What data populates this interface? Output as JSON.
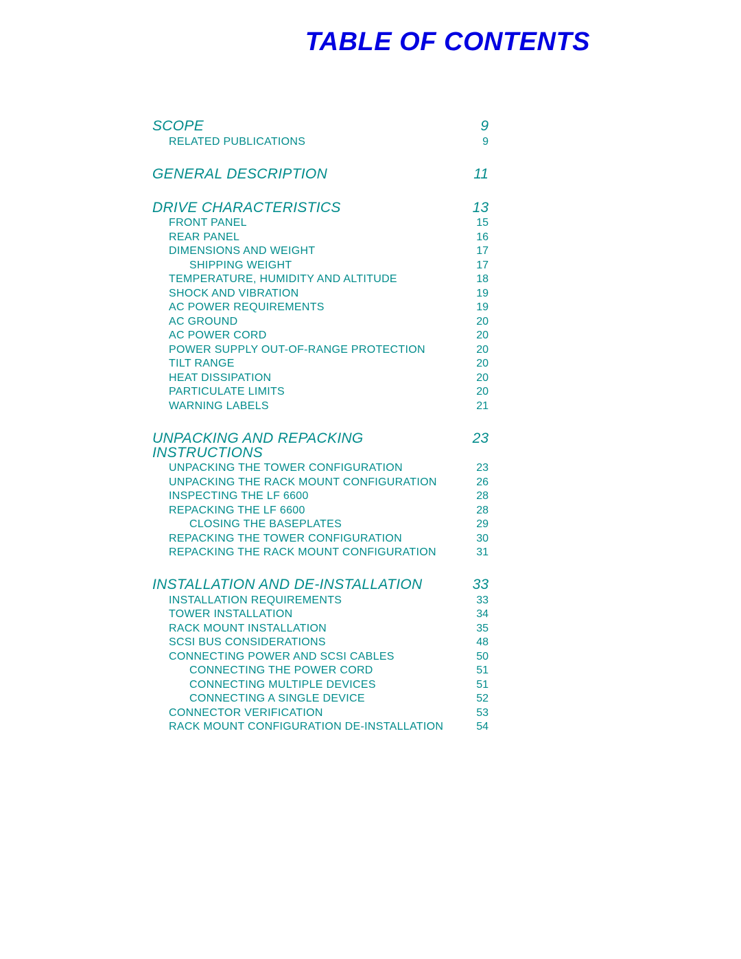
{
  "title": "TABLE OF CONTENTS",
  "colors": {
    "title": "#0000e0",
    "text": "#008b8b",
    "background": "#ffffff"
  },
  "typography": {
    "title_fontsize": 38,
    "section_fontsize": 21,
    "item_fontsize": 16,
    "title_style": "italic bold",
    "section_style": "italic",
    "font_family": "Arial"
  },
  "sections": [
    {
      "label": "SCOPE",
      "page": "9",
      "items": [
        {
          "label": "RELATED PUBLICATIONS",
          "page": "9",
          "indent": 1
        }
      ]
    },
    {
      "label": "GENERAL DESCRIPTION",
      "page": "11",
      "items": []
    },
    {
      "label": "DRIVE CHARACTERISTICS",
      "page": "13",
      "items": [
        {
          "label": "FRONT PANEL",
          "page": "15",
          "indent": 1
        },
        {
          "label": "REAR PANEL",
          "page": "16",
          "indent": 1
        },
        {
          "label": "DIMENSIONS AND WEIGHT",
          "page": "17",
          "indent": 1
        },
        {
          "label": "SHIPPING WEIGHT",
          "page": "17",
          "indent": 2
        },
        {
          "label": "TEMPERATURE, HUMIDITY AND ALTITUDE",
          "page": "18",
          "indent": 1
        },
        {
          "label": "SHOCK AND VIBRATION",
          "page": "19",
          "indent": 1
        },
        {
          "label": "AC POWER REQUIREMENTS",
          "page": "19",
          "indent": 1
        },
        {
          "label": "AC GROUND",
          "page": "20",
          "indent": 1
        },
        {
          "label": "AC POWER CORD",
          "page": "20",
          "indent": 1
        },
        {
          "label": "POWER SUPPLY OUT-OF-RANGE PROTECTION",
          "page": "20",
          "indent": 1
        },
        {
          "label": "TILT RANGE",
          "page": "20",
          "indent": 1
        },
        {
          "label": "HEAT DISSIPATION",
          "page": "20",
          "indent": 1
        },
        {
          "label": "PARTICULATE LIMITS",
          "page": "20",
          "indent": 1
        },
        {
          "label": "WARNING LABELS",
          "page": "21",
          "indent": 1
        }
      ]
    },
    {
      "label": "UNPACKING AND REPACKING INSTRUCTIONS",
      "page": "23",
      "items": [
        {
          "label": "UNPACKING THE TOWER CONFIGURATION",
          "page": "23",
          "indent": 1
        },
        {
          "label": "UNPACKING THE RACK MOUNT CONFIGURATION",
          "page": "26",
          "indent": 1
        },
        {
          "label": "INSPECTING THE LF 6600",
          "page": "28",
          "indent": 1
        },
        {
          "label": "REPACKING THE LF 6600",
          "page": "28",
          "indent": 1
        },
        {
          "label": "CLOSING THE BASEPLATES",
          "page": "29",
          "indent": 2
        },
        {
          "label": "REPACKING THE TOWER CONFIGURATION",
          "page": "30",
          "indent": 1
        },
        {
          "label": "REPACKING THE RACK MOUNT CONFIGURATION",
          "page": "31",
          "indent": 1
        }
      ]
    },
    {
      "label": "INSTALLATION AND DE-INSTALLATION",
      "page": "33",
      "items": [
        {
          "label": "INSTALLATION REQUIREMENTS",
          "page": "33",
          "indent": 1
        },
        {
          "label": "TOWER INSTALLATION",
          "page": "34",
          "indent": 1
        },
        {
          "label": "RACK MOUNT INSTALLATION",
          "page": "35",
          "indent": 1
        },
        {
          "label": "SCSI BUS CONSIDERATIONS",
          "page": "48",
          "indent": 1
        },
        {
          "label": "CONNECTING POWER AND SCSI CABLES",
          "page": "50",
          "indent": 1
        },
        {
          "label": "CONNECTING THE POWER CORD",
          "page": "51",
          "indent": 2
        },
        {
          "label": "CONNECTING MULTIPLE DEVICES",
          "page": "51",
          "indent": 2
        },
        {
          "label": "CONNECTING A SINGLE DEVICE",
          "page": "52",
          "indent": 2
        },
        {
          "label": "CONNECTOR VERIFICATION",
          "page": "53",
          "indent": 1
        },
        {
          "label": "RACK MOUNT CONFIGURATION DE-INSTALLATION",
          "page": "54",
          "indent": 1
        }
      ]
    }
  ]
}
